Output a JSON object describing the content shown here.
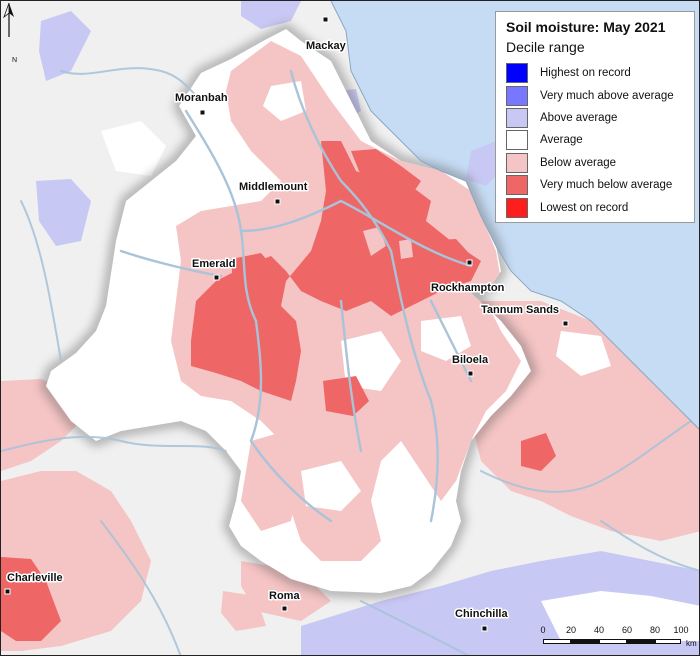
{
  "legend": {
    "title": "Soil moisture: May 2021",
    "subtitle": "Decile range",
    "items": [
      {
        "label": "Highest on record",
        "color": "#0000ff"
      },
      {
        "label": "Very much above average",
        "color": "#7777ff"
      },
      {
        "label": "Above average",
        "color": "#c8c8f4"
      },
      {
        "label": "Average",
        "color": "#ffffff"
      },
      {
        "label": "Below average",
        "color": "#f5c4c4"
      },
      {
        "label": "Very much below average",
        "color": "#ee6666"
      },
      {
        "label": "Lowest on record",
        "color": "#ff1e1e"
      }
    ]
  },
  "towns": {
    "mackay": "Mackay",
    "moranbah": "Moranbah",
    "middlemount": "Middlemount",
    "emerald": "Emerald",
    "rockhampton": "Rockhampton",
    "tannum_sands": "Tannum Sands",
    "biloela": "Biloela",
    "charleville": "Charleville",
    "roma": "Roma",
    "chinchilla": "Chinchilla"
  },
  "north_arrow": {
    "label": "N"
  },
  "scale_bar": {
    "ticks": [
      "0",
      "20",
      "40",
      "60",
      "80",
      "100"
    ],
    "unit": "km"
  },
  "colors": {
    "sea": "#c6dcf4",
    "outside": "#f0f0f0",
    "basin_fill": "#ffffff",
    "river": "#a9c3d8"
  }
}
